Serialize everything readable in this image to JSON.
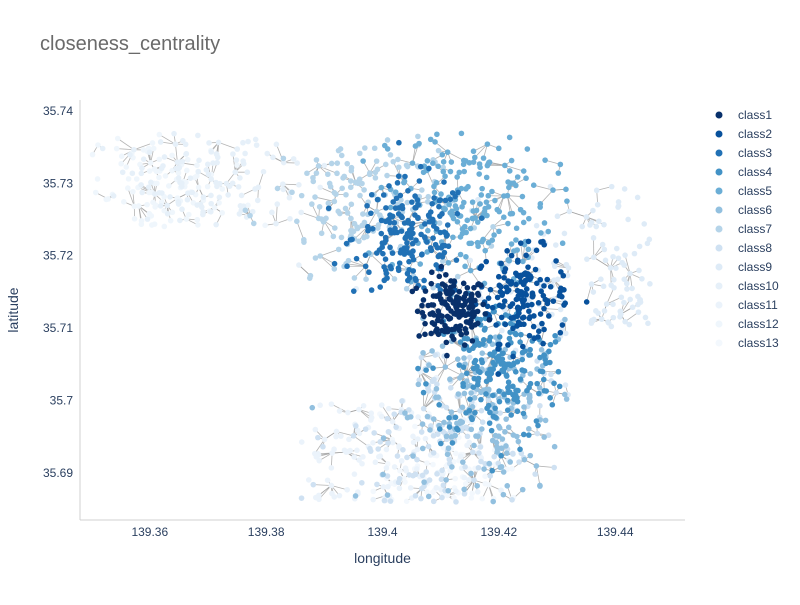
{
  "chart_data": {
    "type": "scatter",
    "title": "closeness_centrality",
    "xlabel": "longitude",
    "ylabel": "latitude",
    "xlim": [
      139.348,
      139.452
    ],
    "ylim": [
      35.6835,
      35.7415
    ],
    "x_ticks": [
      139.36,
      139.38,
      139.4,
      139.42,
      139.44
    ],
    "x_tick_labels": [
      "139.36",
      "139.38",
      "139.4",
      "139.42",
      "139.44"
    ],
    "y_ticks": [
      35.69,
      35.7,
      35.71,
      35.72,
      35.73,
      35.74
    ],
    "y_tick_labels": [
      "35.69",
      "35.7",
      "35.71",
      "35.72",
      "35.73",
      "35.74"
    ],
    "grid": false,
    "legend_position": "right",
    "edge_color": "#a0a0a0",
    "series": [
      {
        "name": "class1",
        "color": "#08306b"
      },
      {
        "name": "class2",
        "color": "#08519c"
      },
      {
        "name": "class3",
        "color": "#2171b5"
      },
      {
        "name": "class4",
        "color": "#4292c6"
      },
      {
        "name": "class5",
        "color": "#6baed6"
      },
      {
        "name": "class6",
        "color": "#92c0df"
      },
      {
        "name": "class7",
        "color": "#b5d4e9"
      },
      {
        "name": "class8",
        "color": "#cfe1f2"
      },
      {
        "name": "class9",
        "color": "#deebf7"
      },
      {
        "name": "class10",
        "color": "#e6f0f9"
      },
      {
        "name": "class11",
        "color": "#ebf3fb"
      },
      {
        "name": "class12",
        "color": "#eff6fc"
      },
      {
        "name": "class13",
        "color": "#f3f8fd"
      }
    ],
    "centers": [
      {
        "lon": 139.412,
        "lat": 35.7125,
        "spread": 0.003
      },
      {
        "lon": 139.424,
        "lat": 35.7145,
        "spread": 0.004
      },
      {
        "lon": 139.405,
        "lat": 35.7225,
        "spread": 0.005
      },
      {
        "lon": 139.42,
        "lat": 35.704,
        "spread": 0.006
      },
      {
        "lon": 139.415,
        "lat": 35.727,
        "spread": 0.007
      },
      {
        "lon": 139.418,
        "lat": 35.698,
        "spread": 0.008
      },
      {
        "lon": 139.397,
        "lat": 35.726,
        "spread": 0.008
      },
      {
        "lon": 139.41,
        "lat": 35.695,
        "spread": 0.009
      },
      {
        "lon": 139.436,
        "lat": 35.716,
        "spread": 0.008
      },
      {
        "lon": 139.37,
        "lat": 35.731,
        "spread": 0.009
      },
      {
        "lon": 139.398,
        "lat": 35.692,
        "spread": 0.009
      },
      {
        "lon": 139.36,
        "lat": 35.729,
        "spread": 0.006
      },
      {
        "lon": 139.412,
        "lat": 35.688,
        "spread": 0.006
      }
    ],
    "point_counts": [
      150,
      160,
      180,
      200,
      200,
      180,
      170,
      160,
      140,
      130,
      120,
      100,
      80
    ]
  }
}
